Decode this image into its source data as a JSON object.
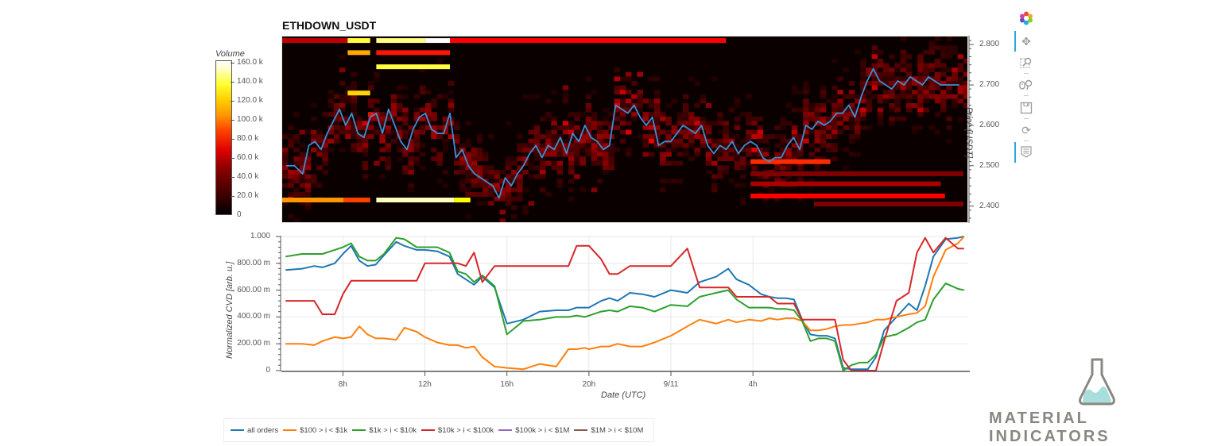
{
  "title": "ETHDOWN_USDT",
  "colorbar": {
    "title": "Volume",
    "ticks": [
      "160.0 k",
      "140.0 k",
      "120.0 k",
      "100.0 k",
      "80.0 k",
      "60.0 k",
      "40.0 k",
      "20.0 k",
      "0"
    ]
  },
  "price_axis": {
    "label": "Price [USDT]",
    "ticks": [
      "2.800",
      "2.700",
      "2.600",
      "2.500",
      "2.400"
    ]
  },
  "cvd_axis": {
    "label": "Normalized CVD [arb. u.]",
    "ticks": [
      "1.000",
      "800.00 m",
      "600.00 m",
      "400.00 m",
      "200.00 m",
      "0"
    ]
  },
  "x_axis": {
    "label": "Date (UTC)",
    "ticks": [
      "8h",
      "12h",
      "16h",
      "20h",
      "9/11",
      "4h"
    ]
  },
  "toolbar": {
    "items": [
      "bokeh-logo",
      "pan",
      "box-zoom",
      "wheel-zoom",
      "save",
      "reset",
      "hover"
    ]
  },
  "legend": [
    {
      "label": "all orders",
      "color": "#1f77b4"
    },
    {
      "label": "$100 > i < $1k",
      "color": "#ff7f0e"
    },
    {
      "label": "$1k > i < $10k",
      "color": "#2ca02c"
    },
    {
      "label": "$10k > i < $100k",
      "color": "#d62728"
    },
    {
      "label": "$100k > i < $1M",
      "color": "#9467bd"
    },
    {
      "label": "$1M > i < $10M",
      "color": "#8c564b"
    }
  ],
  "brand": {
    "name": "MATERIAL INDICATORS",
    "flask_liquid": "#a8dedb",
    "flask_outline": "#8a8780"
  },
  "chart_data": [
    {
      "type": "heatmap",
      "title": "ETHDOWN_USDT",
      "xlabel": "Date (UTC)",
      "ylabel": "Price [USDT]",
      "colorbar_label": "Volume",
      "colorbar_range": [
        0,
        160000
      ],
      "ylim": [
        2.36,
        2.82
      ],
      "x_ticks": [
        "8h",
        "12h",
        "16h",
        "20h",
        "9/11",
        "4h"
      ],
      "x_range_hours": [
        5,
        38.5
      ],
      "price_series": {
        "name": "price",
        "color": "#3b8fd4",
        "x_hours": [
          5.2,
          5.6,
          6.0,
          6.3,
          6.6,
          6.9,
          7.2,
          7.5,
          7.8,
          8.1,
          8.4,
          8.7,
          9.0,
          9.3,
          9.6,
          9.9,
          10.2,
          10.5,
          10.8,
          11.1,
          11.4,
          11.7,
          12.0,
          12.3,
          12.6,
          12.9,
          13.2,
          13.5,
          13.8,
          14.1,
          14.4,
          14.7,
          15.0,
          15.3,
          15.6,
          15.9,
          16.2,
          16.5,
          16.8,
          17.1,
          17.4,
          17.7,
          18.0,
          18.3,
          18.6,
          18.9,
          19.2,
          19.5,
          19.8,
          20.1,
          20.4,
          20.7,
          21.0,
          21.3,
          21.6,
          21.9,
          22.2,
          22.5,
          22.8,
          23.1,
          23.4,
          23.7,
          24.0,
          24.3,
          24.6,
          24.9,
          25.2,
          25.5,
          25.8,
          26.1,
          26.4,
          26.7,
          27.0,
          27.3,
          27.6,
          27.9,
          28.2,
          28.5,
          28.8,
          29.1,
          29.4,
          29.7,
          30.0,
          30.3,
          30.6,
          30.9,
          31.2,
          31.5,
          31.8,
          32.1,
          32.4,
          32.7,
          33.0,
          33.3,
          33.6,
          33.9,
          34.2,
          34.5,
          34.8,
          35.1,
          35.4,
          35.7,
          36.0,
          36.3,
          36.6,
          36.9,
          37.2,
          37.5,
          37.8,
          38.1
        ],
        "values": [
          2.5,
          2.5,
          2.48,
          2.55,
          2.56,
          2.54,
          2.58,
          2.61,
          2.64,
          2.6,
          2.63,
          2.58,
          2.57,
          2.62,
          2.63,
          2.58,
          2.64,
          2.6,
          2.56,
          2.54,
          2.59,
          2.62,
          2.63,
          2.59,
          2.58,
          2.58,
          2.63,
          2.52,
          2.54,
          2.5,
          2.48,
          2.47,
          2.46,
          2.45,
          2.42,
          2.47,
          2.45,
          2.48,
          2.5,
          2.53,
          2.55,
          2.52,
          2.55,
          2.54,
          2.57,
          2.53,
          2.58,
          2.56,
          2.6,
          2.57,
          2.56,
          2.54,
          2.55,
          2.65,
          2.64,
          2.63,
          2.65,
          2.62,
          2.6,
          2.62,
          2.55,
          2.56,
          2.56,
          2.58,
          2.6,
          2.59,
          2.58,
          2.6,
          2.55,
          2.53,
          2.55,
          2.54,
          2.56,
          2.53,
          2.55,
          2.56,
          2.55,
          2.52,
          2.51,
          2.52,
          2.52,
          2.55,
          2.57,
          2.54,
          2.6,
          2.59,
          2.61,
          2.6,
          2.61,
          2.63,
          2.63,
          2.65,
          2.62,
          2.67,
          2.71,
          2.74,
          2.71,
          2.7,
          2.69,
          2.71,
          2.7,
          2.72,
          2.71,
          2.7,
          2.72,
          2.71,
          2.7,
          2.7,
          2.7,
          2.7
        ]
      },
      "wall_bands": [
        {
          "price": 2.81,
          "x_start": 5,
          "x_end": 9.3,
          "volume": 45000
        },
        {
          "price": 2.81,
          "x_start": 8.2,
          "x_end": 9.3,
          "volume": 130000
        },
        {
          "price": 2.81,
          "x_start": 9.6,
          "x_end": 12.0,
          "volume": 140000
        },
        {
          "price": 2.81,
          "x_start": 12.0,
          "x_end": 13.2,
          "volume": 160000
        },
        {
          "price": 2.81,
          "x_start": 13.2,
          "x_end": 26.7,
          "volume": 60000
        },
        {
          "price": 2.78,
          "x_start": 8.2,
          "x_end": 9.3,
          "volume": 100000
        },
        {
          "price": 2.78,
          "x_start": 9.6,
          "x_end": 13.2,
          "volume": 65000
        },
        {
          "price": 2.745,
          "x_start": 9.6,
          "x_end": 13.2,
          "volume": 130000
        },
        {
          "price": 2.68,
          "x_start": 8.2,
          "x_end": 9.3,
          "volume": 110000
        },
        {
          "price": 2.415,
          "x_start": 5,
          "x_end": 8.0,
          "volume": 95000
        },
        {
          "price": 2.415,
          "x_start": 8.0,
          "x_end": 9.3,
          "volume": 75000
        },
        {
          "price": 2.415,
          "x_start": 9.6,
          "x_end": 13.4,
          "volume": 150000
        },
        {
          "price": 2.415,
          "x_start": 13.4,
          "x_end": 14.2,
          "volume": 120000
        },
        {
          "price": 2.51,
          "x_start": 27.9,
          "x_end": 31.8,
          "volume": 70000
        },
        {
          "price": 2.48,
          "x_start": 27.9,
          "x_end": 38.3,
          "volume": 30000
        },
        {
          "price": 2.455,
          "x_start": 27.9,
          "x_end": 37.2,
          "volume": 40000
        },
        {
          "price": 2.425,
          "x_start": 27.9,
          "x_end": 37.4,
          "volume": 60000
        },
        {
          "price": 2.405,
          "x_start": 31.0,
          "x_end": 38.3,
          "volume": 30000
        }
      ]
    },
    {
      "type": "line",
      "title": "",
      "xlabel": "Date (UTC)",
      "ylabel": "Normalized CVD [arb. u.]",
      "ylim": [
        0,
        1.0
      ],
      "grid": true,
      "legend_position": "bottom",
      "x_ticks": [
        "8h",
        "12h",
        "16h",
        "20h",
        "9/11",
        "4h"
      ],
      "x_hours": [
        5.2,
        6,
        6.6,
        7,
        7.6,
        8,
        8.4,
        8.8,
        9.2,
        9.6,
        10,
        10.6,
        11,
        11.6,
        12,
        12.6,
        13.2,
        13.6,
        14,
        14.4,
        14.8,
        15.4,
        16,
        16.8,
        17.6,
        18.4,
        19,
        19.4,
        19.8,
        20,
        20.6,
        21,
        21.4,
        22,
        22.6,
        23.2,
        24,
        24.8,
        25.4,
        26.2,
        26.8,
        27.2,
        27.8,
        28.4,
        28.8,
        29.2,
        29.6,
        30,
        30.4,
        30.8,
        31.2,
        31.6,
        32,
        32.4,
        32.8,
        33.2,
        33.6,
        34,
        34.4,
        35,
        35.6,
        36,
        36.4,
        36.8,
        37.4,
        38,
        38.3
      ],
      "series": [
        {
          "name": "all orders",
          "color": "#1f77b4",
          "values": [
            0.75,
            0.76,
            0.78,
            0.77,
            0.8,
            0.87,
            0.93,
            0.82,
            0.78,
            0.79,
            0.86,
            0.96,
            0.93,
            0.9,
            0.9,
            0.89,
            0.85,
            0.72,
            0.68,
            0.64,
            0.7,
            0.62,
            0.35,
            0.38,
            0.44,
            0.45,
            0.45,
            0.47,
            0.47,
            0.47,
            0.52,
            0.54,
            0.52,
            0.58,
            0.57,
            0.55,
            0.6,
            0.58,
            0.66,
            0.7,
            0.76,
            0.68,
            0.64,
            0.57,
            0.55,
            0.54,
            0.54,
            0.53,
            0.38,
            0.27,
            0.26,
            0.26,
            0.24,
            0.02,
            0.01,
            0.01,
            0.01,
            0.1,
            0.3,
            0.4,
            0.5,
            0.45,
            0.63,
            0.85,
            0.98,
            0.99,
            1.0
          ]
        },
        {
          "name": "$100 > i < $1k",
          "color": "#ff7f0e",
          "values": [
            0.2,
            0.2,
            0.19,
            0.22,
            0.25,
            0.24,
            0.25,
            0.33,
            0.27,
            0.24,
            0.24,
            0.23,
            0.32,
            0.29,
            0.25,
            0.21,
            0.19,
            0.19,
            0.17,
            0.18,
            0.1,
            0.03,
            0.02,
            0.01,
            0.05,
            0.03,
            0.16,
            0.16,
            0.17,
            0.16,
            0.18,
            0.18,
            0.2,
            0.18,
            0.18,
            0.21,
            0.26,
            0.33,
            0.38,
            0.35,
            0.38,
            0.36,
            0.38,
            0.37,
            0.39,
            0.38,
            0.39,
            0.39,
            0.37,
            0.3,
            0.3,
            0.31,
            0.33,
            0.34,
            0.34,
            0.35,
            0.36,
            0.38,
            0.38,
            0.4,
            0.42,
            0.43,
            0.48,
            0.7,
            0.9,
            0.95,
            1.0
          ]
        },
        {
          "name": "$1k > i < $10k",
          "color": "#2ca02c",
          "values": [
            0.85,
            0.87,
            0.87,
            0.87,
            0.9,
            0.92,
            0.95,
            0.85,
            0.82,
            0.82,
            0.87,
            0.99,
            0.98,
            0.92,
            0.92,
            0.92,
            0.88,
            0.74,
            0.72,
            0.66,
            0.71,
            0.63,
            0.27,
            0.37,
            0.38,
            0.4,
            0.4,
            0.41,
            0.4,
            0.41,
            0.44,
            0.45,
            0.44,
            0.48,
            0.47,
            0.44,
            0.49,
            0.48,
            0.55,
            0.58,
            0.6,
            0.53,
            0.47,
            0.47,
            0.47,
            0.46,
            0.46,
            0.45,
            0.37,
            0.22,
            0.24,
            0.24,
            0.22,
            0.0,
            0.04,
            0.06,
            0.06,
            0.12,
            0.25,
            0.27,
            0.32,
            0.36,
            0.38,
            0.53,
            0.65,
            0.61,
            0.6
          ]
        },
        {
          "name": "$10k > i < $100k",
          "color": "#d62728",
          "values": [
            0.52,
            0.52,
            0.52,
            0.42,
            0.42,
            0.57,
            0.67,
            0.67,
            0.67,
            0.67,
            0.67,
            0.67,
            0.67,
            0.67,
            0.8,
            0.8,
            0.8,
            0.8,
            0.78,
            0.88,
            0.66,
            0.78,
            0.78,
            0.78,
            0.78,
            0.78,
            0.78,
            0.93,
            0.93,
            0.93,
            0.83,
            0.72,
            0.72,
            0.78,
            0.78,
            0.78,
            0.78,
            0.91,
            0.62,
            0.62,
            0.62,
            0.55,
            0.55,
            0.55,
            0.55,
            0.5,
            0.5,
            0.5,
            0.38,
            0.38,
            0.38,
            0.38,
            0.38,
            0.08,
            0.0,
            0.0,
            0.0,
            0.0,
            0.22,
            0.52,
            0.58,
            0.88,
            0.99,
            0.88,
            0.99,
            0.91,
            0.91
          ]
        },
        {
          "name": "$100k > i < $1M",
          "color": "#9467bd",
          "values": []
        },
        {
          "name": "$1M > i < $10M",
          "color": "#8c564b",
          "values": []
        }
      ]
    }
  ]
}
